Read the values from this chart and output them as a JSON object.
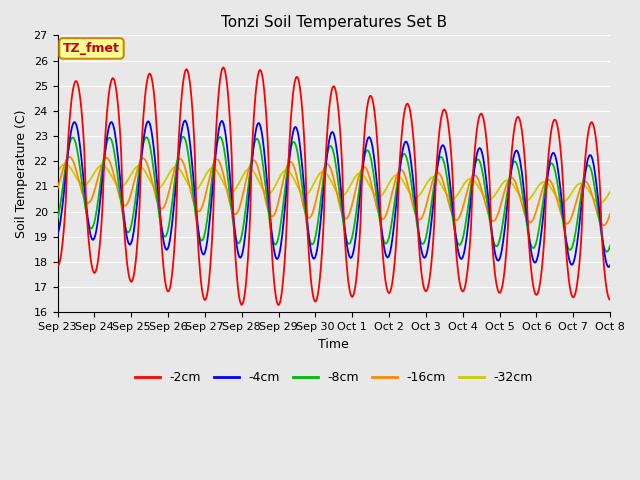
{
  "title": "Tonzi Soil Temperatures Set B",
  "xlabel": "Time",
  "ylabel": "Soil Temperature (C)",
  "annotation": "TZ_fmet",
  "ylim": [
    16.0,
    27.0
  ],
  "yticks": [
    16.0,
    17.0,
    18.0,
    19.0,
    20.0,
    21.0,
    22.0,
    23.0,
    24.0,
    25.0,
    26.0,
    27.0
  ],
  "xtick_labels": [
    "Sep 23",
    "Sep 24",
    "Sep 25",
    "Sep 26",
    "Sep 27",
    "Sep 28",
    "Sep 29",
    "Sep 30",
    "Oct 1",
    "Oct 2",
    "Oct 3",
    "Oct 4",
    "Oct 5",
    "Oct 6",
    "Oct 7",
    "Oct 8"
  ],
  "colors": {
    "-2cm": "#ff0000",
    "-4cm": "#0000ff",
    "-8cm": "#00bb00",
    "-16cm": "#ff8800",
    "-32cm": "#cccc00"
  },
  "legend_labels": [
    "-2cm",
    "-4cm",
    "-8cm",
    "-16cm",
    "-32cm"
  ],
  "background_color": "#e8e8e8",
  "plot_bg_color": "#e8e8e8",
  "grid_color": "#ffffff",
  "annotation_bg": "#ffff99",
  "annotation_border": "#cc8800",
  "title_fontsize": 11,
  "axis_fontsize": 9,
  "tick_fontsize": 8
}
